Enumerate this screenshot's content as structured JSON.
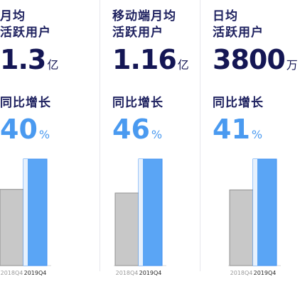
{
  "chart_data": [
    {
      "type": "bar",
      "title_lines": [
        "月均",
        "活跃用户"
      ],
      "value_number": "1.3",
      "value_unit": "亿",
      "growth_label": "同比增长",
      "growth_number": "40",
      "growth_unit": "%",
      "categories": [
        "2018Q4",
        "2019Q4"
      ],
      "values": [
        0.93,
        1.3
      ],
      "colors": [
        "#c8c8c8",
        "#5aa5f5"
      ]
    },
    {
      "type": "bar",
      "title_lines": [
        "移动端月均",
        "活跃用户"
      ],
      "value_number": "1.16",
      "value_unit": "亿",
      "growth_label": "同比增长",
      "growth_number": "46",
      "growth_unit": "%",
      "categories": [
        "2018Q4",
        "2019Q4"
      ],
      "values": [
        0.79,
        1.16
      ],
      "colors": [
        "#c8c8c8",
        "#5aa5f5"
      ]
    },
    {
      "type": "bar",
      "title_lines": [
        "日均",
        "活跃用户"
      ],
      "value_number": "3800",
      "value_unit": "万",
      "growth_label": "同比增长",
      "growth_number": "41",
      "growth_unit": "%",
      "categories": [
        "2018Q4",
        "2019Q4"
      ],
      "values": [
        2700,
        3800
      ],
      "colors": [
        "#c8c8c8",
        "#5aa5f5"
      ]
    }
  ]
}
